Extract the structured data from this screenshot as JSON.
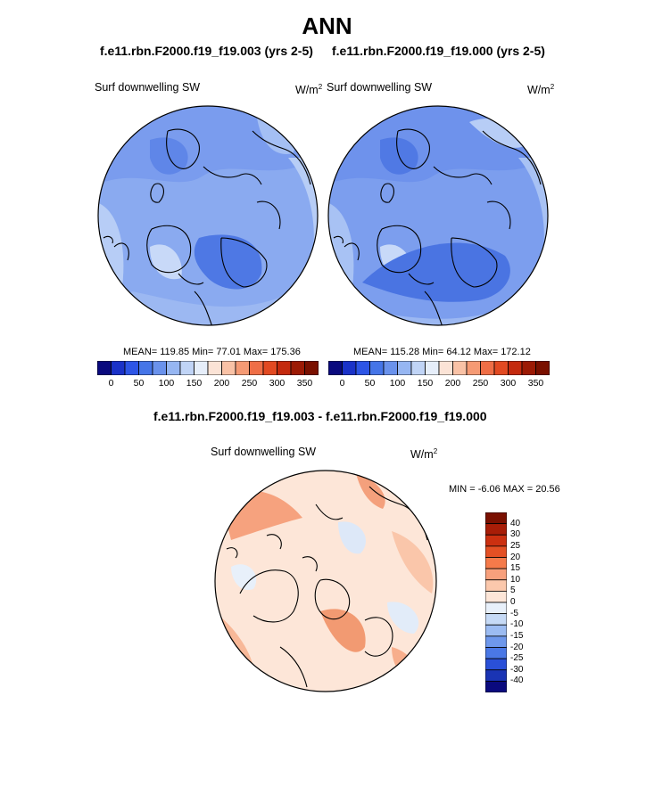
{
  "header": {
    "title": "ANN",
    "left_case": "f.e11.rbn.F2000.f19_f19.003 (yrs 2-5)",
    "right_case": "f.e11.rbn.F2000.f19_f19.000 (yrs 2-5)",
    "diff_title": "f.e11.rbn.F2000.f19_f19.003 - f.e11.rbn.F2000.f19_f19.000"
  },
  "panels": {
    "left": {
      "variable": "Surf downwelling SW",
      "units_base": "W/m",
      "units_exp": "2",
      "stats": "MEAN= 119.85  Min=  77.01  Max= 175.36"
    },
    "right": {
      "variable": "Surf downwelling SW",
      "units_base": "W/m",
      "units_exp": "2",
      "stats": "MEAN= 115.28  Min=  64.12  Max= 172.12"
    },
    "diff": {
      "variable": "Surf downwelling SW",
      "units_base": "W/m",
      "units_exp": "2",
      "minmax": "MIN =  -6.06 MAX =  20.56"
    }
  },
  "colorbars": {
    "field_colors": [
      "#0a0a7e",
      "#1a32c8",
      "#2d55e6",
      "#4575e8",
      "#6a92ec",
      "#96b6f2",
      "#c0d4f6",
      "#e6eefa",
      "#fbe3d6",
      "#f9c2a6",
      "#f59a74",
      "#ef6e46",
      "#e24a22",
      "#c42a0e",
      "#9c1a05",
      "#7a1000"
    ],
    "field_ticks": [
      "0",
      "50",
      "100",
      "150",
      "200",
      "250",
      "300",
      "350"
    ],
    "diff_colors": [
      "#7a1000",
      "#a81d07",
      "#cc3010",
      "#e45024",
      "#f57a4a",
      "#f8a07c",
      "#fbc8ac",
      "#fde6d8",
      "#e8f0fa",
      "#c6daf6",
      "#9cbcf2",
      "#6e98ec",
      "#4a78e6",
      "#2a50d8",
      "#1a34b4",
      "#0a0a7e"
    ],
    "diff_ticks": [
      "40",
      "30",
      "25",
      "20",
      "15",
      "10",
      "5",
      "0",
      "-5",
      "-10",
      "-15",
      "-20",
      "-25",
      "-30",
      "-40"
    ]
  },
  "chart_data": [
    {
      "type": "heatmap",
      "title": "f.e11.rbn.F2000.f19_f19.003 (yrs 2-5)",
      "variable": "Surf downwelling SW",
      "units": "W/m2",
      "projection": "polar stereographic (north)",
      "mean": 119.85,
      "min": 77.01,
      "max": 175.36,
      "colorbar_range": [
        0,
        350
      ],
      "colorbar_step": 25
    },
    {
      "type": "heatmap",
      "title": "f.e11.rbn.F2000.f19_f19.000 (yrs 2-5)",
      "variable": "Surf downwelling SW",
      "units": "W/m2",
      "projection": "polar stereographic (north)",
      "mean": 115.28,
      "min": 64.12,
      "max": 172.12,
      "colorbar_range": [
        0,
        350
      ],
      "colorbar_step": 25
    },
    {
      "type": "heatmap",
      "title": "f.e11.rbn.F2000.f19_f19.003 - f.e11.rbn.F2000.f19_f19.000",
      "variable": "Surf downwelling SW",
      "units": "W/m2",
      "projection": "polar stereographic (north)",
      "min": -6.06,
      "max": 20.56,
      "colorbar_levels": [
        -40,
        -30,
        -25,
        -20,
        -15,
        -10,
        -5,
        0,
        5,
        10,
        15,
        20,
        25,
        30,
        40
      ]
    }
  ]
}
